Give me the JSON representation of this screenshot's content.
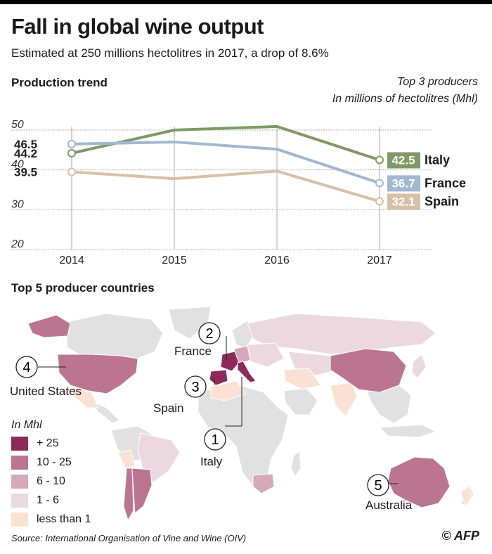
{
  "header": {
    "title": "Fall in global wine output",
    "subtitle": "Estimated at 250 millions hectolitres in 2017, a drop of 8.6%"
  },
  "trend": {
    "section_title": "Production trend",
    "note_line1": "Top 3 producers",
    "note_line2": "In millions of hectolitres (Mhl)"
  },
  "chart_data": {
    "type": "line",
    "title": "Production trend",
    "ylabel": "Millions of hectolitres (Mhl)",
    "x": [
      "2014",
      "2015",
      "2016",
      "2017"
    ],
    "ylim": [
      20,
      50
    ],
    "yticks": [
      "20",
      "30",
      "40",
      "50"
    ],
    "series": [
      {
        "name": "Italy",
        "values": [
          44.2,
          50.0,
          50.9,
          42.5
        ],
        "color": "#7f9a65",
        "start_label": "44.2",
        "end_label": "42.5"
      },
      {
        "name": "France",
        "values": [
          46.5,
          47.0,
          45.2,
          36.7
        ],
        "color": "#a2b8d1",
        "start_label": "46.5",
        "end_label": "36.7"
      },
      {
        "name": "Spain",
        "values": [
          39.5,
          37.8,
          39.7,
          32.1
        ],
        "color": "#d8c0a6",
        "start_label": "39.5",
        "end_label": "32.1"
      }
    ]
  },
  "map": {
    "section_title": "Top 5 producer countries",
    "countries": [
      {
        "rank": "1",
        "name": "Italy"
      },
      {
        "rank": "2",
        "name": "France"
      },
      {
        "rank": "3",
        "name": "Spain"
      },
      {
        "rank": "4",
        "name": "United States"
      },
      {
        "rank": "5",
        "name": "Australia"
      }
    ],
    "legend": {
      "title": "In Mhl",
      "items": [
        {
          "label": "+ 25",
          "color": "#8e2a5a"
        },
        {
          "label": "10 - 25",
          "color": "#bc7590"
        },
        {
          "label": "6 - 10",
          "color": "#d6a9b8"
        },
        {
          "label": "1 - 6",
          "color": "#ecd9e0"
        },
        {
          "label": "less than 1",
          "color": "#fbe1d2"
        }
      ]
    }
  },
  "footer": {
    "source": "Source: International Organisation of Vine and Wine (OIV)",
    "credit": "© AFP"
  }
}
